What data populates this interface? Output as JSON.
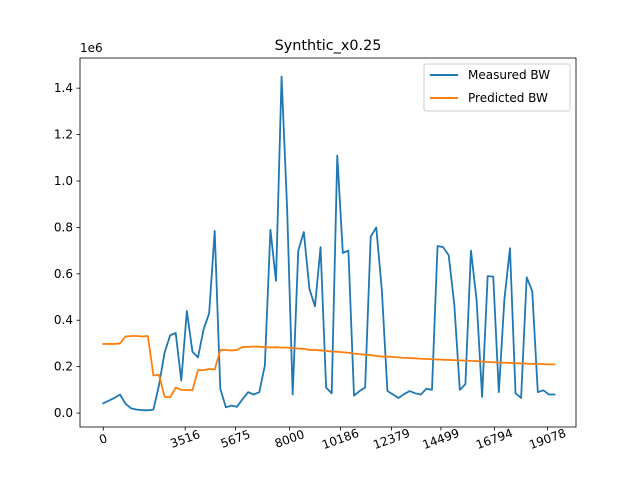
{
  "chart_data": {
    "type": "line",
    "title": "Synthtic_x0.25",
    "xlabel": "",
    "ylabel": "",
    "y_offset_label": "1e6",
    "y_multiplier": 1000000,
    "xlim": [
      -1000,
      20300
    ],
    "ylim": [
      -60000,
      1530000
    ],
    "x_ticks": [
      {
        "value": 0,
        "label": "0"
      },
      {
        "value": 3516,
        "label": "3516"
      },
      {
        "value": 5675,
        "label": "5675"
      },
      {
        "value": 8000,
        "label": "8000"
      },
      {
        "value": 10186,
        "label": "10186"
      },
      {
        "value": 12379,
        "label": "12379"
      },
      {
        "value": 14499,
        "label": "14499"
      },
      {
        "value": 16794,
        "label": "16794"
      },
      {
        "value": 19078,
        "label": "19078"
      }
    ],
    "y_ticks": [
      {
        "value": 0,
        "label": "0.0"
      },
      {
        "value": 200000,
        "label": "0.2"
      },
      {
        "value": 400000,
        "label": "0.4"
      },
      {
        "value": 600000,
        "label": "0.6"
      },
      {
        "value": 800000,
        "label": "0.8"
      },
      {
        "value": 1000000,
        "label": "1.0"
      },
      {
        "value": 1200000,
        "label": "1.2"
      },
      {
        "value": 1400000,
        "label": "1.4"
      }
    ],
    "grid": false,
    "legend_position": "top-right",
    "series": [
      {
        "name": "Measured BW",
        "color": "#1f77b4",
        "x": [
          0,
          478,
          718,
          957,
          1196,
          1435,
          1675,
          1914,
          2153,
          2392,
          2632,
          2871,
          3110,
          3349,
          3589,
          3828,
          4067,
          4306,
          4546,
          4785,
          5024,
          5263,
          5502,
          5742,
          5981,
          6220,
          6459,
          6699,
          6938,
          7177,
          7416,
          7656,
          7895,
          8134,
          8373,
          8612,
          8852,
          9091,
          9330,
          9569,
          9809,
          10048,
          10287,
          10526,
          10766,
          11005,
          11244,
          11483,
          11722,
          11962,
          12201,
          12440,
          12679,
          12919,
          13158,
          13397,
          13636,
          13876,
          14115,
          14354,
          14593,
          14833,
          15072,
          15311,
          15550,
          15789,
          16029,
          16268,
          16507,
          16746,
          16986,
          17225,
          17464,
          17703,
          17943,
          18182,
          18421,
          18660,
          18900,
          19139,
          19378
        ],
        "values": [
          42000,
          65000,
          80000,
          40000,
          20000,
          15000,
          13000,
          12000,
          15000,
          120000,
          260000,
          335000,
          345000,
          140000,
          440000,
          265000,
          240000,
          360000,
          430000,
          785000,
          105000,
          25000,
          32000,
          27000,
          60000,
          90000,
          80000,
          90000,
          205000,
          790000,
          570000,
          1450000,
          880000,
          80000,
          700000,
          780000,
          535000,
          460000,
          715000,
          110000,
          85000,
          1110000,
          690000,
          700000,
          75000,
          95000,
          110000,
          760000,
          800000,
          530000,
          95000,
          80000,
          65000,
          82000,
          95000,
          85000,
          80000,
          105000,
          100000,
          720000,
          715000,
          680000,
          470000,
          100000,
          125000,
          700000,
          490000,
          70000,
          590000,
          588000,
          90000,
          490000,
          710000,
          85000,
          65000,
          585000,
          525000,
          90000,
          98000,
          80000,
          80000
        ]
      },
      {
        "name": "Predicted BW",
        "color": "#ff7f0e",
        "x": [
          0,
          478,
          718,
          957,
          1196,
          1435,
          1675,
          1914,
          2153,
          2392,
          2632,
          2871,
          3110,
          3349,
          3589,
          3828,
          4067,
          4306,
          4546,
          4785,
          5024,
          5263,
          5502,
          5742,
          5981,
          6220,
          6459,
          6699,
          6938,
          7177,
          7416,
          7656,
          7895,
          8134,
          8373,
          8612,
          8852,
          9091,
          9330,
          9569,
          9809,
          10048,
          10287,
          10526,
          10766,
          11005,
          11244,
          11483,
          11722,
          11962,
          12201,
          12440,
          12679,
          12919,
          13158,
          13397,
          13636,
          13876,
          14115,
          14354,
          14593,
          14833,
          15072,
          15311,
          15550,
          15789,
          16029,
          16268,
          16507,
          16746,
          16986,
          17225,
          17464,
          17703,
          17943,
          18182,
          18421,
          18660,
          18900,
          19139,
          19378
        ],
        "values": [
          298000,
          298000,
          300000,
          330000,
          332000,
          332000,
          330000,
          332000,
          162000,
          165000,
          70000,
          68000,
          110000,
          100000,
          100000,
          98000,
          185000,
          185000,
          190000,
          188000,
          272000,
          272000,
          270000,
          272000,
          285000,
          285000,
          287000,
          286000,
          284000,
          283000,
          284000,
          282000,
          282000,
          280000,
          278000,
          277000,
          272000,
          272000,
          270000,
          268000,
          265000,
          264000,
          262000,
          260000,
          256000,
          254000,
          252000,
          250000,
          246000,
          244000,
          243000,
          242000,
          240000,
          238000,
          237000,
          236000,
          234000,
          233000,
          232000,
          231000,
          230000,
          229000,
          228000,
          227000,
          226000,
          225000,
          224000,
          222000,
          220000,
          219000,
          218000,
          217000,
          216000,
          215000,
          214000,
          213000,
          212000,
          212000,
          211000,
          210000,
          210000
        ]
      }
    ]
  }
}
